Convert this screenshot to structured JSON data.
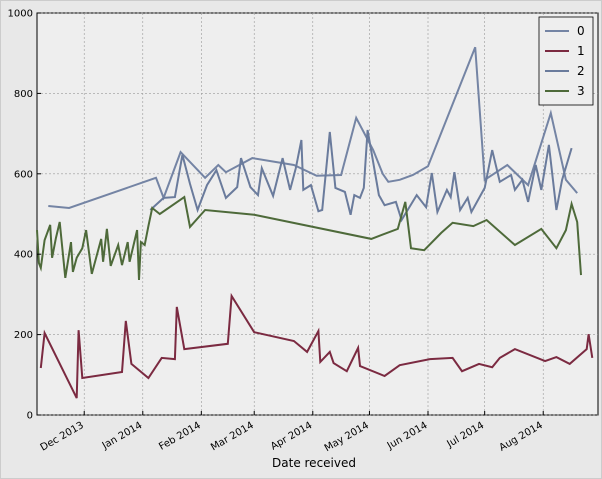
{
  "chart_data": {
    "type": "line",
    "xlabel": "Date received",
    "grid": true,
    "legend": "upper right",
    "xlim": [
      "2013-11-06",
      "2014-08-30"
    ],
    "xticks": [
      {
        "value": "2013-12-01",
        "label": "Dec 2013"
      },
      {
        "value": "2014-01-01",
        "label": "Jan 2014"
      },
      {
        "value": "2014-02-01",
        "label": "Feb 2014"
      },
      {
        "value": "2014-03-01",
        "label": "Mar 2014"
      },
      {
        "value": "2014-04-01",
        "label": "Apr 2014"
      },
      {
        "value": "2014-05-01",
        "label": "May 2014"
      },
      {
        "value": "2014-06-01",
        "label": "Jun 2014"
      },
      {
        "value": "2014-07-01",
        "label": "Jul 2014"
      },
      {
        "value": "2014-08-01",
        "label": "Aug 2014"
      }
    ],
    "ylim": [
      0,
      1000
    ],
    "yticks": [
      0,
      200,
      400,
      600,
      800,
      1000
    ],
    "series": [
      {
        "name": "0",
        "color": "#7484a4",
        "x": [
          "2013-11-12",
          "2013-11-23",
          "2014-01-08",
          "2014-01-12",
          "2014-01-21",
          "2014-02-03",
          "2014-02-10",
          "2014-02-14",
          "2014-02-28",
          "2014-03-22",
          "2014-04-03",
          "2014-04-16",
          "2014-04-24",
          "2014-05-03",
          "2014-05-08",
          "2014-05-11",
          "2014-05-17",
          "2014-05-24",
          "2014-06-01",
          "2014-06-26",
          "2014-07-01",
          "2014-07-13",
          "2014-07-24",
          "2014-08-05",
          "2014-08-13",
          "2014-08-19"
        ],
        "values": [
          520,
          515,
          590,
          540,
          654,
          590,
          622,
          604,
          639,
          622,
          595,
          597,
          739,
          659,
          600,
          580,
          585,
          597,
          619,
          915,
          585,
          622,
          572,
          751,
          585,
          552
        ]
      },
      {
        "name": "1",
        "color": "#7b2a41",
        "x": [
          "2013-11-08",
          "2013-11-10",
          "2013-11-27",
          "2013-11-28",
          "2013-11-30",
          "2013-12-21",
          "2013-12-23",
          "2013-12-26",
          "2014-01-04",
          "2014-01-11",
          "2014-01-18",
          "2014-01-19",
          "2014-01-23",
          "2014-02-15",
          "2014-02-17",
          "2014-03-01",
          "2014-03-22",
          "2014-03-29",
          "2014-04-04",
          "2014-04-05",
          "2014-04-10",
          "2014-04-12",
          "2014-04-19",
          "2014-04-25",
          "2014-04-26",
          "2014-05-09",
          "2014-05-17",
          "2014-06-02",
          "2014-06-14",
          "2014-06-19",
          "2014-06-28",
          "2014-07-05",
          "2014-07-09",
          "2014-07-17",
          "2014-08-02",
          "2014-08-08",
          "2014-08-15",
          "2014-08-24",
          "2014-08-25",
          "2014-08-27"
        ],
        "values": [
          117,
          204,
          42,
          211,
          92,
          107,
          234,
          127,
          92,
          142,
          139,
          269,
          164,
          177,
          296,
          206,
          184,
          157,
          209,
          132,
          157,
          129,
          109,
          167,
          122,
          97,
          124,
          139,
          142,
          109,
          127,
          119,
          142,
          164,
          134,
          144,
          127,
          164,
          201,
          142
        ]
      },
      {
        "name": "2",
        "color": "#6a7b9c",
        "x": [
          "2014-01-05",
          "2014-01-12",
          "2014-01-18",
          "2014-01-22",
          "2014-01-26",
          "2014-01-30",
          "2014-02-04",
          "2014-02-09",
          "2014-02-14",
          "2014-02-20",
          "2014-02-22",
          "2014-02-27",
          "2014-03-03",
          "2014-03-05",
          "2014-03-11",
          "2014-03-16",
          "2014-03-20",
          "2014-03-23",
          "2014-03-26",
          "2014-03-27",
          "2014-03-31",
          "2014-04-04",
          "2014-04-06",
          "2014-04-10",
          "2014-04-13",
          "2014-04-18",
          "2014-04-21",
          "2014-04-23",
          "2014-04-26",
          "2014-04-28",
          "2014-04-30",
          "2014-05-06",
          "2014-05-09",
          "2014-05-15",
          "2014-05-18",
          "2014-05-26",
          "2014-05-31",
          "2014-06-03",
          "2014-06-06",
          "2014-06-11",
          "2014-06-13",
          "2014-06-15",
          "2014-06-18",
          "2014-06-22",
          "2014-06-24",
          "2014-07-01",
          "2014-07-05",
          "2014-07-09",
          "2014-07-15",
          "2014-07-17",
          "2014-07-21",
          "2014-07-24",
          "2014-07-28",
          "2014-07-31",
          "2014-08-04",
          "2014-08-08",
          "2014-08-11",
          "2014-08-16"
        ],
        "values": [
          510,
          540,
          542,
          647,
          575,
          510,
          572,
          609,
          540,
          567,
          639,
          567,
          547,
          614,
          545,
          639,
          560,
          614,
          684,
          560,
          572,
          507,
          510,
          704,
          565,
          555,
          498,
          547,
          540,
          565,
          709,
          547,
          522,
          530,
          485,
          547,
          517,
          602,
          505,
          560,
          542,
          604,
          510,
          540,
          505,
          565,
          659,
          580,
          597,
          560,
          585,
          530,
          622,
          560,
          672,
          510,
          585,
          664
        ]
      },
      {
        "name": "3",
        "color": "#4e6a3a",
        "x": [
          "2013-11-06",
          "2013-11-07",
          "2013-11-08",
          "2013-11-10",
          "2013-11-13",
          "2013-11-14",
          "2013-11-16",
          "2013-11-18",
          "2013-11-21",
          "2013-11-24",
          "2013-11-25",
          "2013-11-27",
          "2013-11-30",
          "2013-12-02",
          "2013-12-05",
          "2013-12-07",
          "2013-12-10",
          "2013-12-11",
          "2013-12-13",
          "2013-12-15",
          "2013-12-19",
          "2013-12-21",
          "2013-12-24",
          "2013-12-25",
          "2013-12-29",
          "2013-12-30",
          "2013-12-31",
          "2014-01-02",
          "2014-01-04",
          "2014-01-06",
          "2014-01-10",
          "2014-01-23",
          "2014-01-26",
          "2014-02-03",
          "2014-03-01",
          "2014-05-02",
          "2014-05-16",
          "2014-05-20",
          "2014-05-23",
          "2014-05-30",
          "2014-06-08",
          "2014-06-14",
          "2014-06-25",
          "2014-07-02",
          "2014-07-17",
          "2014-07-31",
          "2014-08-08",
          "2014-08-13",
          "2014-08-16",
          "2014-08-19",
          "2014-08-21"
        ],
        "values": [
          460,
          378,
          366,
          435,
          473,
          391,
          440,
          480,
          341,
          430,
          356,
          391,
          415,
          460,
          351,
          386,
          438,
          381,
          463,
          371,
          423,
          373,
          430,
          381,
          460,
          336,
          430,
          423,
          470,
          515,
          500,
          542,
          468,
          510,
          498,
          438,
          463,
          530,
          415,
          410,
          453,
          478,
          470,
          485,
          423,
          463,
          415,
          460,
          525,
          480,
          348
        ]
      }
    ]
  }
}
